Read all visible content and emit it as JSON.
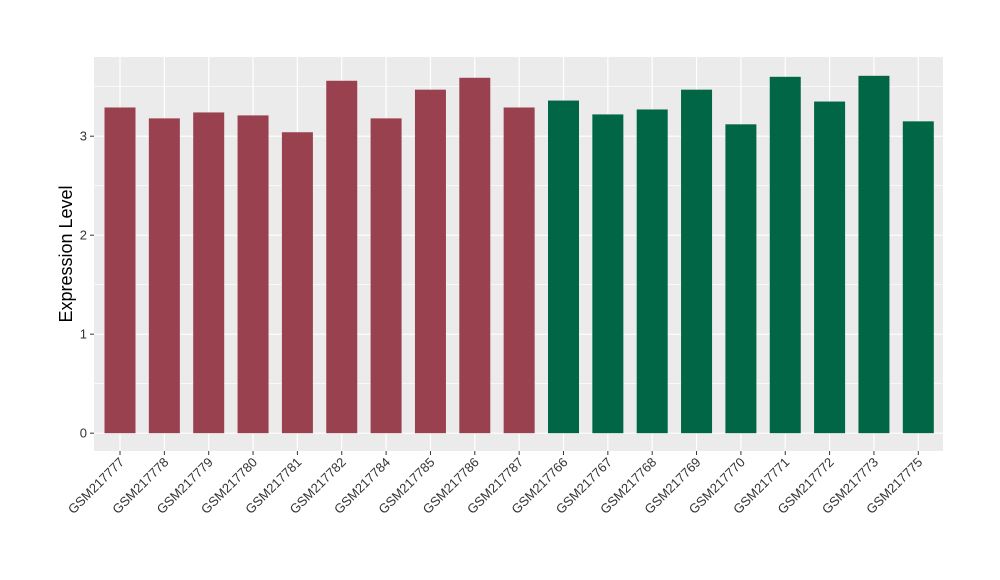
{
  "chart_data": {
    "type": "bar",
    "title": "",
    "xlabel": "",
    "ylabel": "Expression Level",
    "ylim": [
      -0.18,
      3.8
    ],
    "yticks": [
      0,
      1,
      2,
      3
    ],
    "grid": true,
    "legend": "none",
    "categories": [
      "GSM217777",
      "GSM217778",
      "GSM217779",
      "GSM217780",
      "GSM217781",
      "GSM217782",
      "GSM217784",
      "GSM217785",
      "GSM217786",
      "GSM217787",
      "GSM217766",
      "GSM217767",
      "GSM217768",
      "GSM217769",
      "GSM217770",
      "GSM217771",
      "GSM217772",
      "GSM217773",
      "GSM217775"
    ],
    "values": [
      3.29,
      3.18,
      3.24,
      3.21,
      3.04,
      3.56,
      3.18,
      3.47,
      3.59,
      3.29,
      3.36,
      3.22,
      3.27,
      3.47,
      3.12,
      3.6,
      3.35,
      3.61,
      3.15
    ],
    "groups": [
      0,
      0,
      0,
      0,
      0,
      0,
      0,
      0,
      0,
      0,
      1,
      1,
      1,
      1,
      1,
      1,
      1,
      1,
      1
    ],
    "group_colors": [
      "#99414f",
      "#006645"
    ]
  },
  "colors": {
    "panel_bg": "#ebebeb",
    "grid_major": "#ffffff",
    "axis_text": "#333333"
  }
}
